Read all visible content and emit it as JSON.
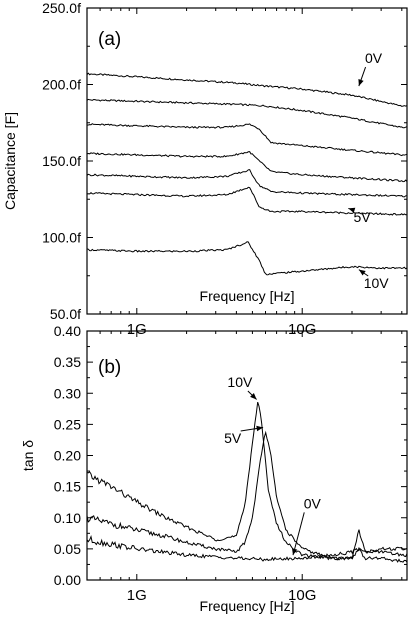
{
  "chart_data": [
    {
      "type": "line",
      "panel_label": "(a)",
      "xlabel": "Frequency [Hz]",
      "ylabel": "Capacitance [F]",
      "xscale": "log",
      "xlim": [
        500000000.0,
        43000000000.0
      ],
      "ylim": [
        50,
        250
      ],
      "xticks": [
        {
          "value": 1000000000.0,
          "label": "1G"
        },
        {
          "value": 10000000000.0,
          "label": "10G"
        }
      ],
      "yticks": [
        {
          "value": 50,
          "label": "50.0f"
        },
        {
          "value": 100,
          "label": "100.0f"
        },
        {
          "value": 150,
          "label": "150.0f"
        },
        {
          "value": 200,
          "label": "200.0f"
        },
        {
          "value": 250,
          "label": "250.0f"
        }
      ],
      "series": [
        {
          "x": [
            500000000.0,
            1000000000.0,
            2000000000.0,
            4000000000.0,
            6000000000.0,
            10000000000.0,
            20000000000.0,
            40000000000.0
          ],
          "y": [
            207,
            205,
            203,
            201,
            199,
            197,
            193,
            186
          ]
        },
        {
          "x": [
            500000000.0,
            1000000000.0,
            2000000000.0,
            4000000000.0,
            6000000000.0,
            10000000000.0,
            20000000000.0,
            40000000000.0
          ],
          "y": [
            190,
            189,
            188,
            187,
            186,
            183,
            178,
            172
          ]
        },
        {
          "x": [
            500000000.0,
            1000000000.0,
            2000000000.0,
            3500000000.0,
            4800000000.0,
            5500000000.0,
            6500000000.0,
            10000000000.0,
            20000000000.0,
            40000000000.0
          ],
          "y": [
            174,
            173,
            172,
            172,
            174,
            171,
            162,
            160,
            157,
            154
          ]
        },
        {
          "x": [
            500000000.0,
            1000000000.0,
            2000000000.0,
            3500000000.0,
            4800000000.0,
            5500000000.0,
            6500000000.0,
            10000000000.0,
            20000000000.0,
            40000000000.0
          ],
          "y": [
            155,
            154,
            153,
            153,
            156,
            150,
            143,
            141,
            139,
            137
          ]
        },
        {
          "x": [
            500000000.0,
            1000000000.0,
            2000000000.0,
            3500000000.0,
            4800000000.0,
            5500000000.0,
            6500000000.0,
            10000000000.0,
            20000000000.0,
            40000000000.0
          ],
          "y": [
            141,
            140,
            139,
            140,
            144,
            134,
            130,
            129,
            128,
            127
          ]
        },
        {
          "x": [
            500000000.0,
            1000000000.0,
            2000000000.0,
            3500000000.0,
            4800000000.0,
            5500000000.0,
            6500000000.0,
            10000000000.0,
            20000000000.0,
            40000000000.0
          ],
          "y": [
            129,
            128,
            127,
            128,
            133,
            120,
            117,
            117,
            116,
            115
          ]
        },
        {
          "x": [
            500000000.0,
            1000000000.0,
            2000000000.0,
            3500000000.0,
            4700000000.0,
            5500000000.0,
            6000000000.0,
            10000000000.0,
            20000000000.0,
            30000000000.0,
            40000000000.0
          ],
          "y": [
            92,
            91,
            91,
            92,
            97,
            85,
            76,
            78,
            81,
            80,
            80
          ]
        }
      ],
      "annotations": [
        {
          "text": "0V",
          "x": 27000000000.0,
          "y": 214,
          "arrow_to": [
            22000000000.0,
            199
          ]
        },
        {
          "text": "5V",
          "x": 23000000000.0,
          "y": 110,
          "arrow_to": [
            19000000000.0,
            119
          ]
        },
        {
          "text": "10V",
          "x": 28000000000.0,
          "y": 67,
          "arrow_to": [
            22000000000.0,
            79
          ]
        }
      ]
    },
    {
      "type": "line",
      "panel_label": "(b)",
      "xlabel": "Frequency [Hz]",
      "ylabel": "tan δ",
      "xscale": "log",
      "xlim": [
        500000000.0,
        43000000000.0
      ],
      "ylim": [
        0,
        0.4
      ],
      "xticks": [
        {
          "value": 1000000000.0,
          "label": "1G"
        },
        {
          "value": 10000000000.0,
          "label": "10G"
        }
      ],
      "yticks": [
        {
          "value": 0.0,
          "label": "0.00"
        },
        {
          "value": 0.05,
          "label": "0.05"
        },
        {
          "value": 0.1,
          "label": "0.10"
        },
        {
          "value": 0.15,
          "label": "0.15"
        },
        {
          "value": 0.2,
          "label": "0.20"
        },
        {
          "value": 0.25,
          "label": "0.25"
        },
        {
          "value": 0.3,
          "label": "0.30"
        },
        {
          "value": 0.35,
          "label": "0.35"
        },
        {
          "value": 0.4,
          "label": "0.40"
        }
      ],
      "series": [
        {
          "x": [
            500000000.0,
            700000000.0,
            1000000000.0,
            1500000000.0,
            2000000000.0,
            3000000000.0,
            4000000000.0,
            4500000000.0,
            5000000000.0,
            5400000000.0,
            5700000000.0,
            6200000000.0,
            7000000000.0,
            8000000000.0,
            10000000000.0,
            15000000000.0,
            20000000000.0,
            22000000000.0,
            24000000000.0,
            30000000000.0,
            40000000000.0
          ],
          "y": [
            0.17,
            0.15,
            0.125,
            0.1,
            0.085,
            0.065,
            0.07,
            0.12,
            0.22,
            0.29,
            0.25,
            0.15,
            0.09,
            0.06,
            0.04,
            0.035,
            0.035,
            0.05,
            0.035,
            0.035,
            0.03
          ]
        },
        {
          "x": [
            500000000.0,
            700000000.0,
            1000000000.0,
            1500000000.0,
            2000000000.0,
            3000000000.0,
            4000000000.0,
            4500000000.0,
            5000000000.0,
            5500000000.0,
            6000000000.0,
            6500000000.0,
            7000000000.0,
            8000000000.0,
            10000000000.0,
            15000000000.0,
            20000000000.0,
            22000000000.0,
            24000000000.0,
            30000000000.0,
            40000000000.0
          ],
          "y": [
            0.1,
            0.09,
            0.08,
            0.07,
            0.06,
            0.05,
            0.045,
            0.06,
            0.1,
            0.18,
            0.24,
            0.2,
            0.13,
            0.08,
            0.05,
            0.035,
            0.035,
            0.08,
            0.045,
            0.045,
            0.04
          ]
        },
        {
          "x": [
            500000000.0,
            1000000000.0,
            2000000000.0,
            4000000000.0,
            6000000000.0,
            10000000000.0,
            15000000000.0,
            20000000000.0,
            22000000000.0,
            24000000000.0,
            30000000000.0,
            40000000000.0
          ],
          "y": [
            0.065,
            0.05,
            0.04,
            0.035,
            0.033,
            0.035,
            0.04,
            0.045,
            0.05,
            0.045,
            0.05,
            0.05
          ]
        }
      ],
      "annotations": [
        {
          "text": "10V",
          "x": 4200000000.0,
          "y": 0.31,
          "arrow_to": [
            5300000000.0,
            0.29
          ]
        },
        {
          "text": "5V",
          "x": 3800000000.0,
          "y": 0.22,
          "arrow_to": [
            5800000000.0,
            0.245
          ]
        },
        {
          "text": "0V",
          "x": 11500000000.0,
          "y": 0.115,
          "arrow_to": [
            8800000000.0,
            0.04
          ]
        }
      ]
    }
  ]
}
